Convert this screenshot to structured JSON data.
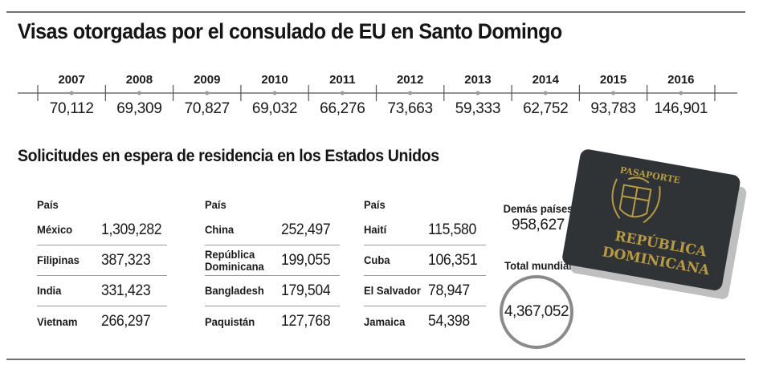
{
  "header": {
    "title": "Visas otorgadas por el consulado de EU en Santo Domingo"
  },
  "chart_data": [
    {
      "type": "table",
      "title": "Visas otorgadas por el consulado de EU en Santo Domingo",
      "x": [
        "2007",
        "2008",
        "2009",
        "2010",
        "2011",
        "2012",
        "2013",
        "2014",
        "2015",
        "2016"
      ],
      "value_labels": [
        "70,112",
        "69,309",
        "70,827",
        "69,032",
        "66,276",
        "73,663",
        "59,333",
        "62,752",
        "93,783",
        "146,901"
      ],
      "values": [
        70112,
        69309,
        70827,
        69032,
        66276,
        73663,
        59333,
        62752,
        93783,
        146901
      ]
    },
    {
      "type": "table",
      "title": "Solicitudes en espera de residencia en los Estados Unidos",
      "columns": [
        {
          "header": "País",
          "rows": [
            {
              "country": "México",
              "value": "1,309,282"
            },
            {
              "country": "Filipinas",
              "value": "387,323"
            },
            {
              "country": "India",
              "value": "331,423"
            },
            {
              "country": "Vietnam",
              "value": "266,297"
            }
          ]
        },
        {
          "header": "País",
          "rows": [
            {
              "country": "China",
              "value": "252,497"
            },
            {
              "country": "República Dominicana",
              "value": "199,055"
            },
            {
              "country": "Bangladesh",
              "value": "179,504"
            },
            {
              "country": "Paquistán",
              "value": "127,768"
            }
          ]
        },
        {
          "header": "País",
          "rows": [
            {
              "country": "Haití",
              "value": "115,580"
            },
            {
              "country": "Cuba",
              "value": "106,351"
            },
            {
              "country": "El Salvador",
              "value": "78,947"
            },
            {
              "country": "Jamaica",
              "value": "54,398"
            }
          ]
        }
      ],
      "others": {
        "label": "Demás países",
        "value": "958,627"
      },
      "world_total": {
        "label": "Total mundial",
        "value": "4,367,052"
      }
    }
  ],
  "section2": {
    "title": "Solicitudes en espera de residencia en los Estados Unidos"
  },
  "passport": {
    "top_text": "PASAPORTE",
    "line1": "REPÚBLICA",
    "line2": "DOMINICANA",
    "cover_color": "#2f3336",
    "text_color": "#b79a45"
  },
  "colors": {
    "rule": "#6f6f6f",
    "circle": "#8a8a8a"
  }
}
